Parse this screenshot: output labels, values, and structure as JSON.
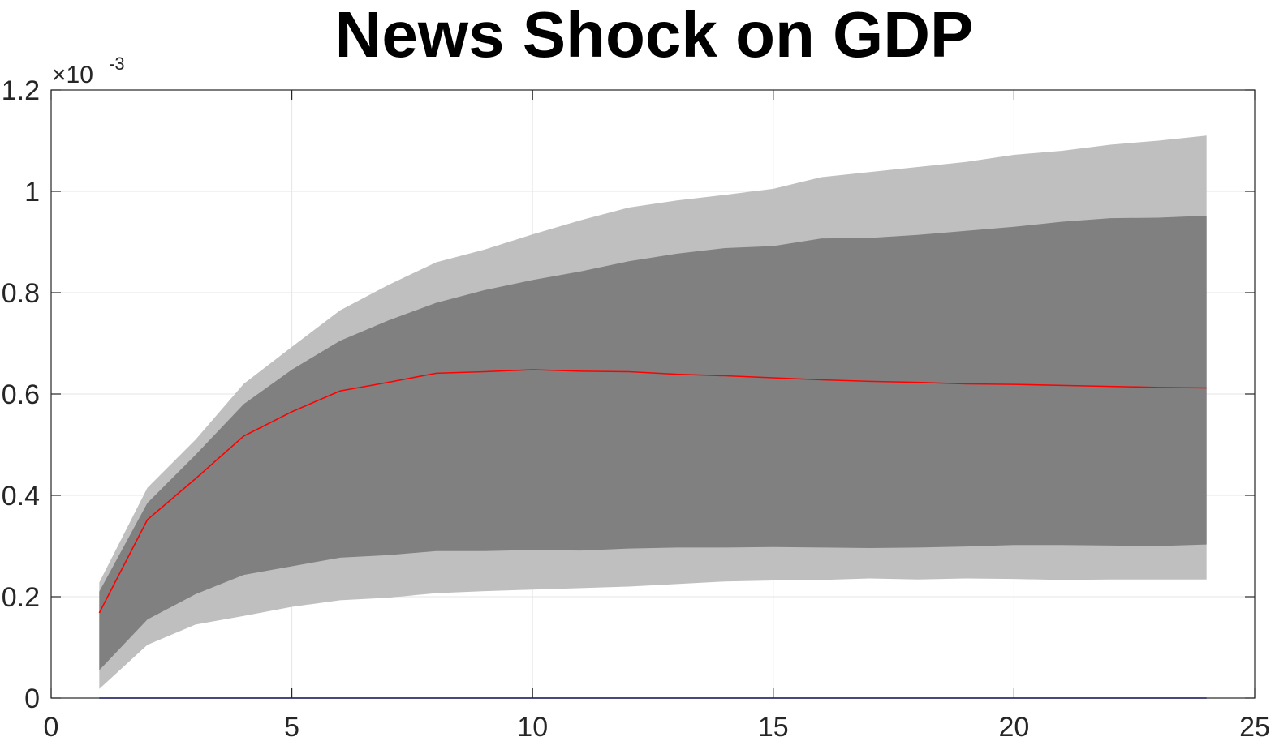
{
  "chart_data": {
    "type": "area",
    "title": "News Shock on GDP",
    "xlabel": "",
    "ylabel": "",
    "y_exponent_label": "×10",
    "y_exponent_power": "-3",
    "xlim": [
      0,
      25
    ],
    "ylim": [
      0,
      1.2
    ],
    "x_ticks": [
      0,
      5,
      10,
      15,
      20,
      25
    ],
    "x_tick_labels": [
      "0",
      "5",
      "10",
      "15",
      "20",
      "25"
    ],
    "y_ticks": [
      0,
      0.2,
      0.4,
      0.6,
      0.8,
      1.0,
      1.2
    ],
    "y_tick_labels": [
      "0",
      "0.2",
      "0.4",
      "0.6",
      "0.8",
      "1",
      "1.2"
    ],
    "grid": true,
    "legend": "none",
    "x": [
      1,
      2,
      3,
      4,
      5,
      6,
      7,
      8,
      9,
      10,
      11,
      12,
      13,
      14,
      15,
      16,
      17,
      18,
      19,
      20,
      21,
      22,
      23,
      24
    ],
    "series": [
      {
        "role": "outer-band",
        "color": "#bfbfbf",
        "upper": [
          0.228,
          0.415,
          0.51,
          0.62,
          0.693,
          0.765,
          0.815,
          0.86,
          0.885,
          0.915,
          0.943,
          0.968,
          0.982,
          0.993,
          1.005,
          1.028,
          1.038,
          1.048,
          1.058,
          1.072,
          1.08,
          1.092,
          1.1,
          1.11
        ],
        "lower": [
          0.018,
          0.105,
          0.145,
          0.162,
          0.18,
          0.193,
          0.198,
          0.207,
          0.211,
          0.214,
          0.217,
          0.22,
          0.225,
          0.23,
          0.232,
          0.233,
          0.236,
          0.234,
          0.236,
          0.235,
          0.233,
          0.234,
          0.234,
          0.234
        ]
      },
      {
        "role": "inner-band",
        "color": "#808080",
        "upper": [
          0.21,
          0.385,
          0.48,
          0.58,
          0.648,
          0.705,
          0.745,
          0.78,
          0.805,
          0.825,
          0.842,
          0.862,
          0.877,
          0.888,
          0.892,
          0.907,
          0.908,
          0.914,
          0.922,
          0.93,
          0.94,
          0.947,
          0.948,
          0.952
        ],
        "lower": [
          0.055,
          0.155,
          0.205,
          0.243,
          0.26,
          0.277,
          0.282,
          0.29,
          0.29,
          0.292,
          0.291,
          0.295,
          0.297,
          0.297,
          0.298,
          0.297,
          0.296,
          0.297,
          0.299,
          0.302,
          0.302,
          0.301,
          0.3,
          0.303
        ]
      },
      {
        "role": "median-line",
        "color": "#ff0000",
        "values": [
          0.168,
          0.352,
          0.433,
          0.517,
          0.565,
          0.606,
          0.623,
          0.641,
          0.644,
          0.648,
          0.645,
          0.644,
          0.639,
          0.636,
          0.632,
          0.628,
          0.625,
          0.623,
          0.62,
          0.619,
          0.617,
          0.615,
          0.613,
          0.612
        ]
      },
      {
        "role": "zero-line",
        "color": "#0000ff",
        "values": [
          0,
          0,
          0,
          0,
          0,
          0,
          0,
          0,
          0,
          0,
          0,
          0,
          0,
          0,
          0,
          0,
          0,
          0,
          0,
          0,
          0,
          0,
          0,
          0
        ]
      }
    ]
  }
}
